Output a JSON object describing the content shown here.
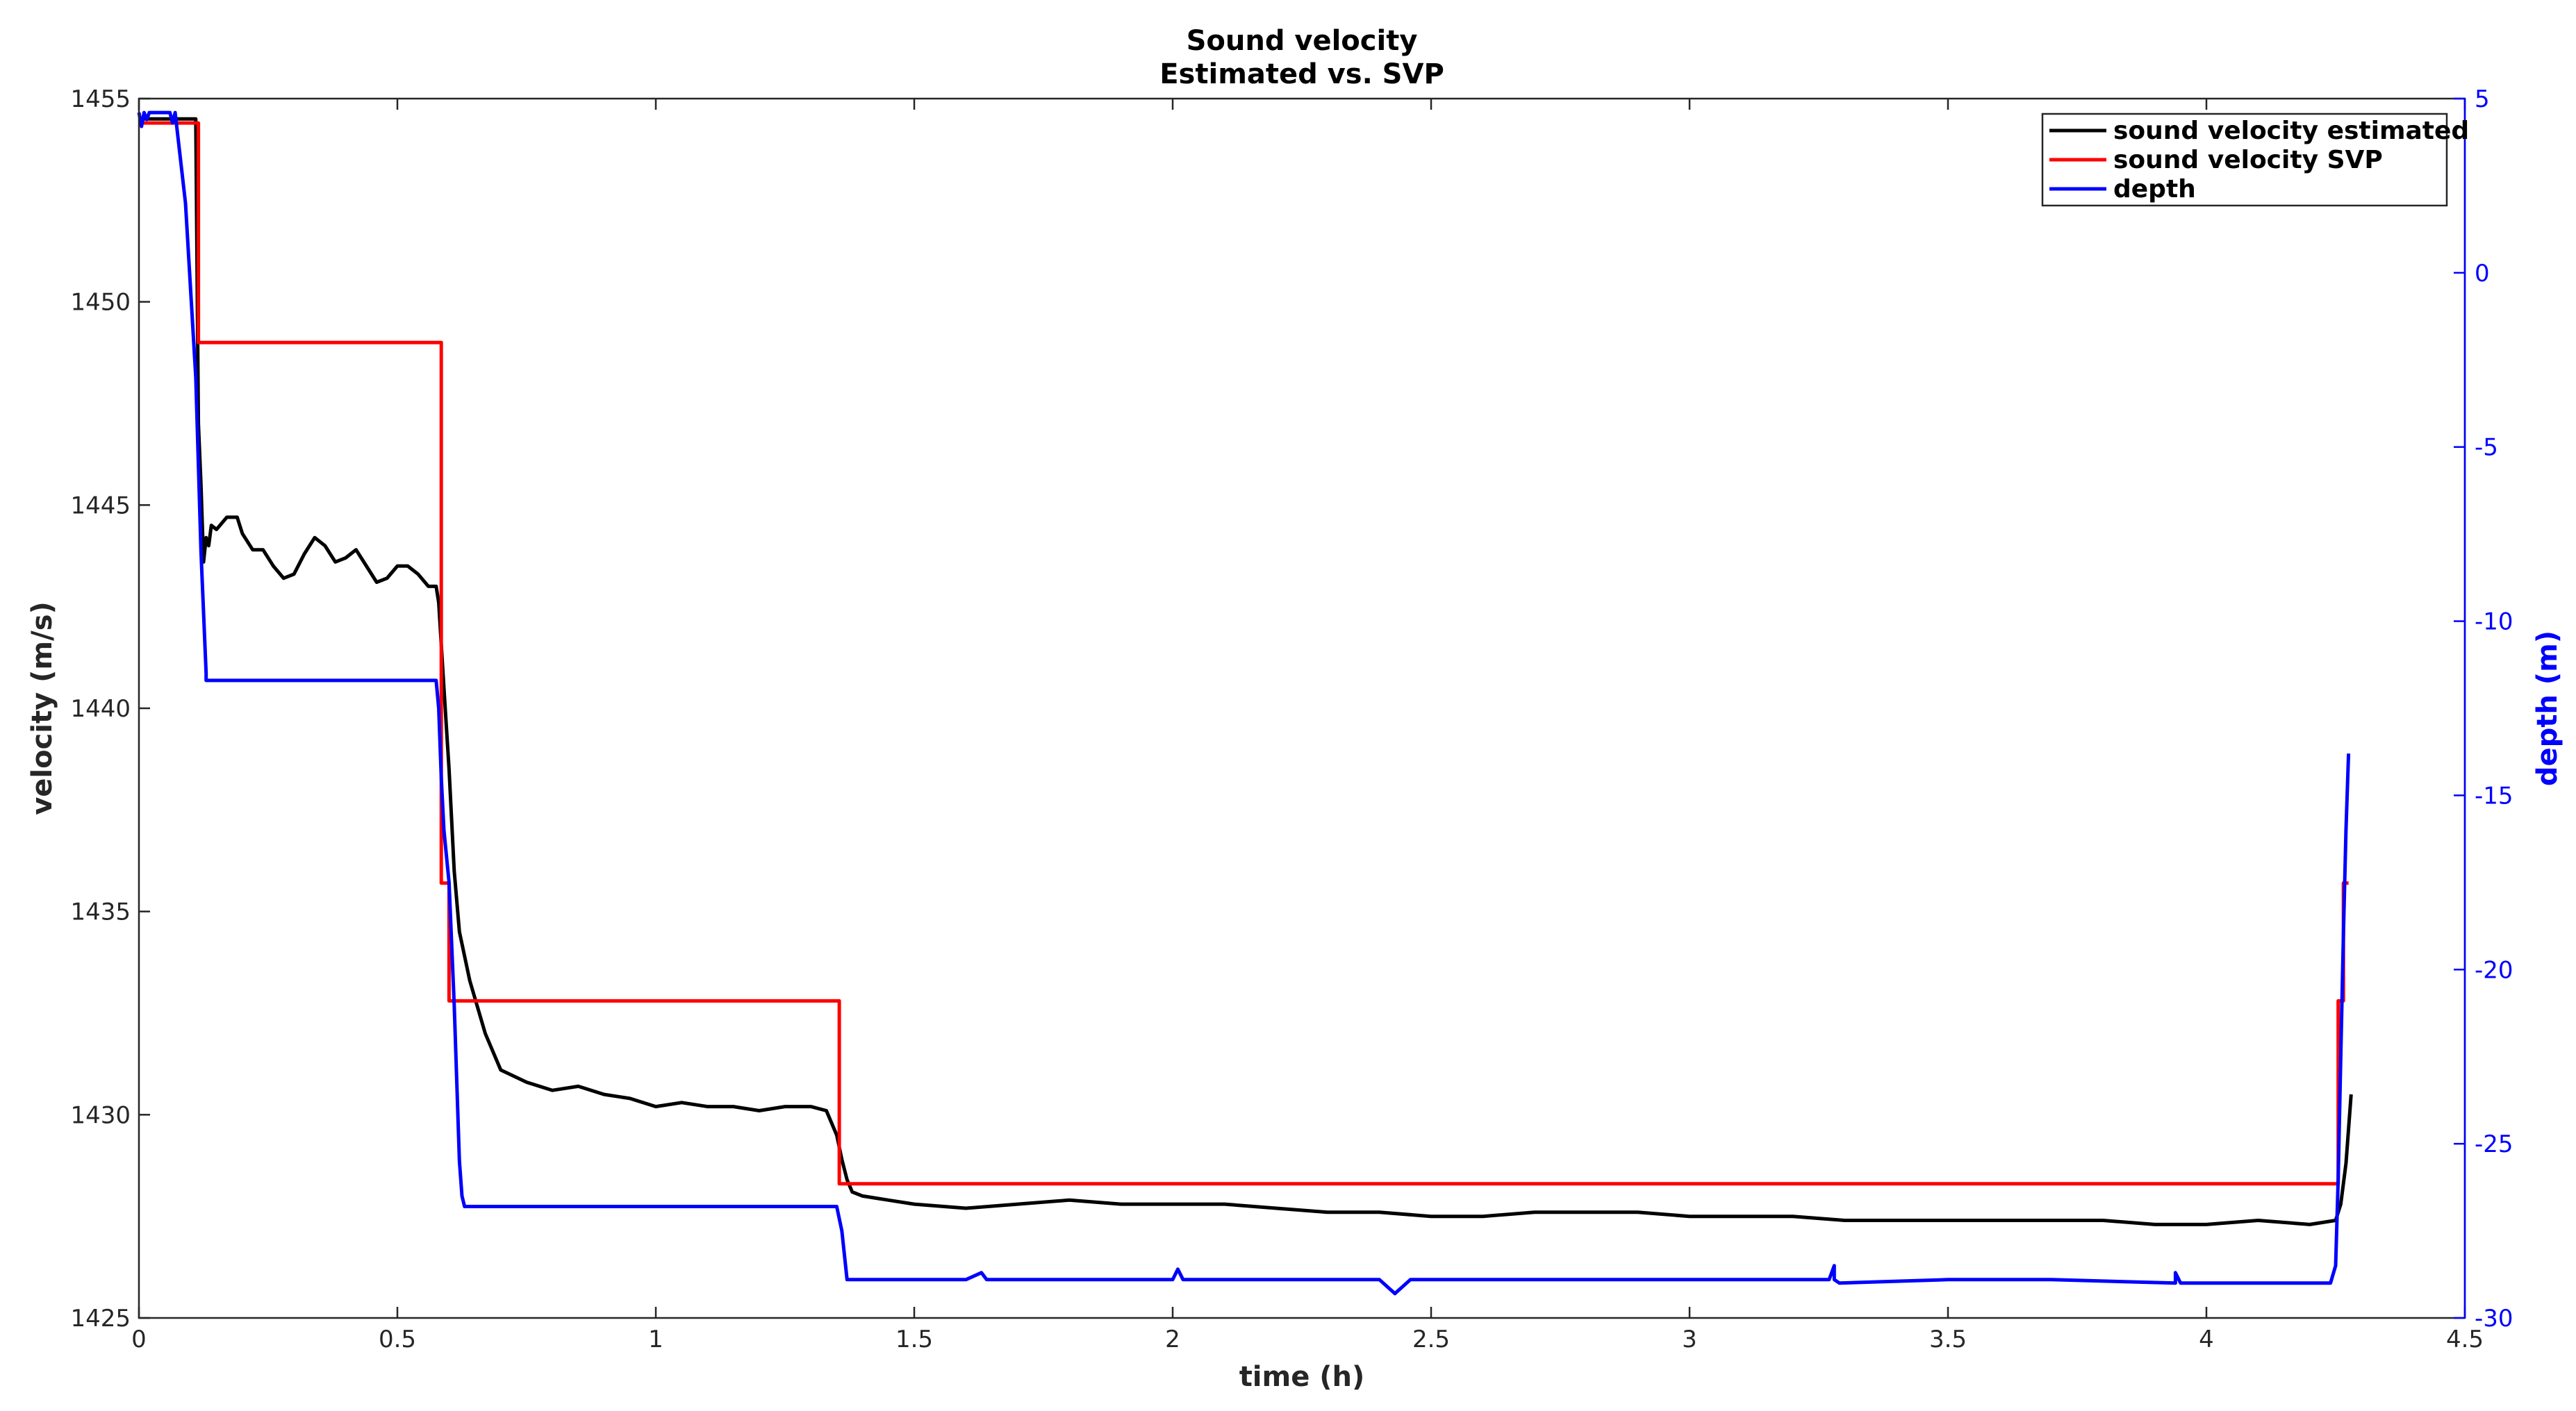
{
  "chart_data": {
    "type": "line",
    "title": "Sound velocity",
    "subtitle": "Estimated vs. SVP",
    "xlabel": "time (h)",
    "ylabel": "velocity (m/s)",
    "y2label": "depth (m)",
    "xlim": [
      0,
      4.5
    ],
    "ylim": [
      1425,
      1455
    ],
    "y2lim": [
      -30,
      5
    ],
    "xticks": [
      0,
      0.5,
      1,
      1.5,
      2,
      2.5,
      3,
      3.5,
      4,
      4.5
    ],
    "xtick_labels": [
      "0",
      "0.5",
      "1",
      "1.5",
      "2",
      "2.5",
      "3",
      "3.5",
      "4",
      "4.5"
    ],
    "yticks": [
      1425,
      1430,
      1435,
      1440,
      1445,
      1450,
      1455
    ],
    "ytick_labels": [
      "1425",
      "1430",
      "1435",
      "1440",
      "1445",
      "1450",
      "1455"
    ],
    "y2ticks": [
      -30,
      -25,
      -20,
      -15,
      -10,
      -5,
      0,
      5
    ],
    "y2tick_labels": [
      "-30",
      "-25",
      "-20",
      "-15",
      "-10",
      "-5",
      "0",
      "5"
    ],
    "grid": false,
    "legend_position": "top-right",
    "series": [
      {
        "name": "sound velocity estimated",
        "axis": "left",
        "color": "#000000",
        "x": [
          0.0,
          0.1,
          0.1,
          0.11,
          0.115,
          0.12,
          0.125,
          0.13,
          0.135,
          0.14,
          0.15,
          0.17,
          0.19,
          0.2,
          0.22,
          0.24,
          0.26,
          0.28,
          0.3,
          0.32,
          0.34,
          0.36,
          0.38,
          0.4,
          0.42,
          0.44,
          0.46,
          0.48,
          0.5,
          0.52,
          0.54,
          0.56,
          0.575,
          0.58,
          0.59,
          0.6,
          0.61,
          0.62,
          0.64,
          0.67,
          0.7,
          0.75,
          0.8,
          0.85,
          0.9,
          0.95,
          1.0,
          1.05,
          1.1,
          1.15,
          1.2,
          1.25,
          1.3,
          1.33,
          1.35,
          1.36,
          1.37,
          1.38,
          1.4,
          1.45,
          1.5,
          1.6,
          1.7,
          1.8,
          1.9,
          2.0,
          2.1,
          2.2,
          2.3,
          2.4,
          2.5,
          2.6,
          2.7,
          2.8,
          2.9,
          3.0,
          3.1,
          3.2,
          3.3,
          3.4,
          3.5,
          3.6,
          3.7,
          3.8,
          3.9,
          4.0,
          4.1,
          4.2,
          4.25,
          4.26,
          4.27,
          4.28
        ],
        "values": [
          1454.5,
          1454.5,
          1454.5,
          1454.5,
          1447.0,
          1445.5,
          1443.6,
          1444.2,
          1444.0,
          1444.5,
          1444.4,
          1444.7,
          1444.7,
          1444.3,
          1443.9,
          1443.9,
          1443.5,
          1443.2,
          1443.3,
          1443.8,
          1444.2,
          1444.0,
          1443.6,
          1443.7,
          1443.9,
          1443.5,
          1443.1,
          1443.2,
          1443.5,
          1443.5,
          1443.3,
          1443.0,
          1443.0,
          1442.6,
          1440.5,
          1438.5,
          1436.0,
          1434.5,
          1433.3,
          1432.0,
          1431.1,
          1430.8,
          1430.6,
          1430.7,
          1430.5,
          1430.4,
          1430.2,
          1430.3,
          1430.2,
          1430.2,
          1430.1,
          1430.2,
          1430.2,
          1430.1,
          1429.5,
          1428.9,
          1428.4,
          1428.1,
          1428.0,
          1427.9,
          1427.8,
          1427.7,
          1427.8,
          1427.9,
          1427.8,
          1427.8,
          1427.8,
          1427.7,
          1427.6,
          1427.6,
          1427.5,
          1427.5,
          1427.6,
          1427.6,
          1427.6,
          1427.5,
          1427.5,
          1427.5,
          1427.4,
          1427.4,
          1427.4,
          1427.4,
          1427.4,
          1427.4,
          1427.3,
          1427.3,
          1427.4,
          1427.3,
          1427.4,
          1427.8,
          1428.8,
          1430.5
        ]
      },
      {
        "name": "sound velocity SVP",
        "axis": "left",
        "color": "#ff0000",
        "x": [
          0.0,
          0.115,
          0.115,
          0.585,
          0.585,
          0.6,
          0.6,
          1.355,
          1.355,
          4.255,
          4.255,
          4.265,
          4.265,
          4.275
        ],
        "values": [
          1454.4,
          1454.4,
          1449.0,
          1449.0,
          1435.7,
          1435.7,
          1432.8,
          1432.8,
          1428.3,
          1428.3,
          1432.8,
          1432.8,
          1435.7,
          1435.7
        ]
      },
      {
        "name": "depth",
        "axis": "right",
        "color": "#0000ff",
        "x": [
          0.0,
          0.005,
          0.01,
          0.015,
          0.02,
          0.06,
          0.065,
          0.07,
          0.09,
          0.11,
          0.12,
          0.13,
          0.13,
          0.575,
          0.58,
          0.585,
          0.59,
          0.6,
          0.61,
          0.62,
          0.625,
          0.63,
          1.35,
          1.36,
          1.37,
          1.4,
          1.6,
          1.63,
          1.64,
          1.66,
          2.0,
          2.01,
          2.02,
          2.03,
          2.4,
          2.43,
          2.46,
          3.27,
          3.28,
          3.28,
          3.29,
          3.5,
          3.7,
          3.94,
          3.94,
          3.95,
          4.24,
          4.25,
          4.255,
          4.26,
          4.265,
          4.27,
          4.275
        ],
        "values": [
          4.6,
          4.2,
          4.6,
          4.4,
          4.6,
          4.6,
          4.3,
          4.6,
          2.0,
          -3.0,
          -8.0,
          -11.5,
          -11.7,
          -11.7,
          -12.5,
          -14.5,
          -16.0,
          -17.5,
          -21.0,
          -25.5,
          -26.5,
          -26.8,
          -26.8,
          -27.5,
          -28.9,
          -28.9,
          -28.9,
          -28.7,
          -28.9,
          -28.9,
          -28.9,
          -28.6,
          -28.9,
          -28.9,
          -28.9,
          -29.3,
          -28.9,
          -28.9,
          -28.5,
          -28.9,
          -29.0,
          -28.9,
          -28.9,
          -29.0,
          -28.7,
          -29.0,
          -29.0,
          -28.5,
          -26.0,
          -22.5,
          -19.0,
          -16.0,
          -13.8
        ]
      }
    ]
  }
}
